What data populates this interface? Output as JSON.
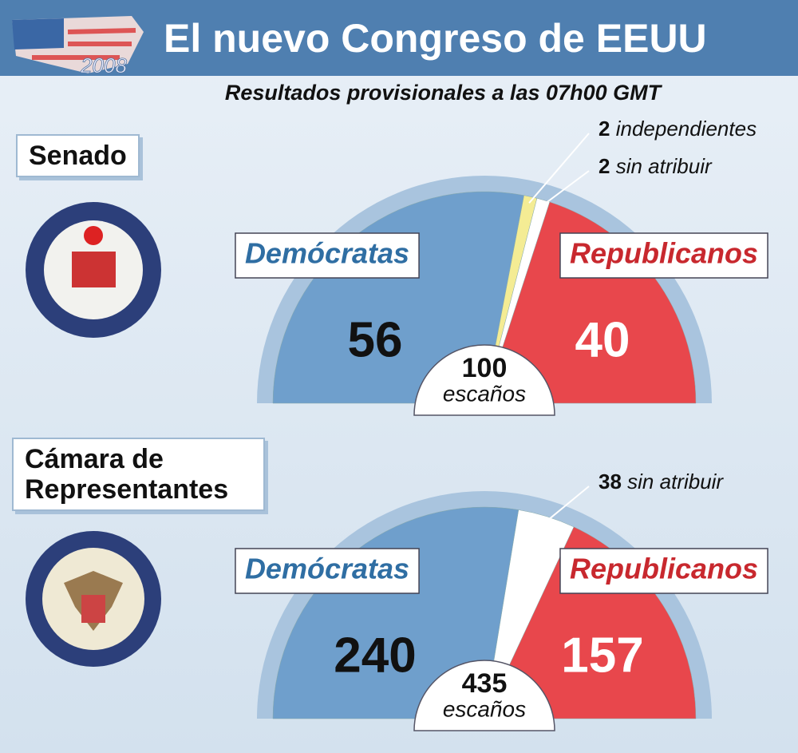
{
  "header": {
    "title": "El nuevo Congreso de EEUU",
    "logo_year": "2008",
    "subtitle": "Resultados provisionales a las 07h00 GMT"
  },
  "chart_data": [
    {
      "type": "half-pie",
      "title": "Senado",
      "categories": [
        "Demócratas",
        "independientes",
        "sin atribuir",
        "Republicanos"
      ],
      "values": [
        56,
        2,
        2,
        40
      ],
      "colors": [
        "#6f9fcc",
        "#f4ec94",
        "#ffffff",
        "#e8474c"
      ],
      "total": 100,
      "unit": "escaños"
    },
    {
      "type": "half-pie",
      "title": "Cámara de Representantes",
      "categories": [
        "Demócratas",
        "sin atribuir",
        "Republicanos"
      ],
      "values": [
        240,
        38,
        157
      ],
      "colors": [
        "#6f9fcc",
        "#ffffff",
        "#e8474c"
      ],
      "total": 435,
      "unit": "escaños"
    }
  ]
}
